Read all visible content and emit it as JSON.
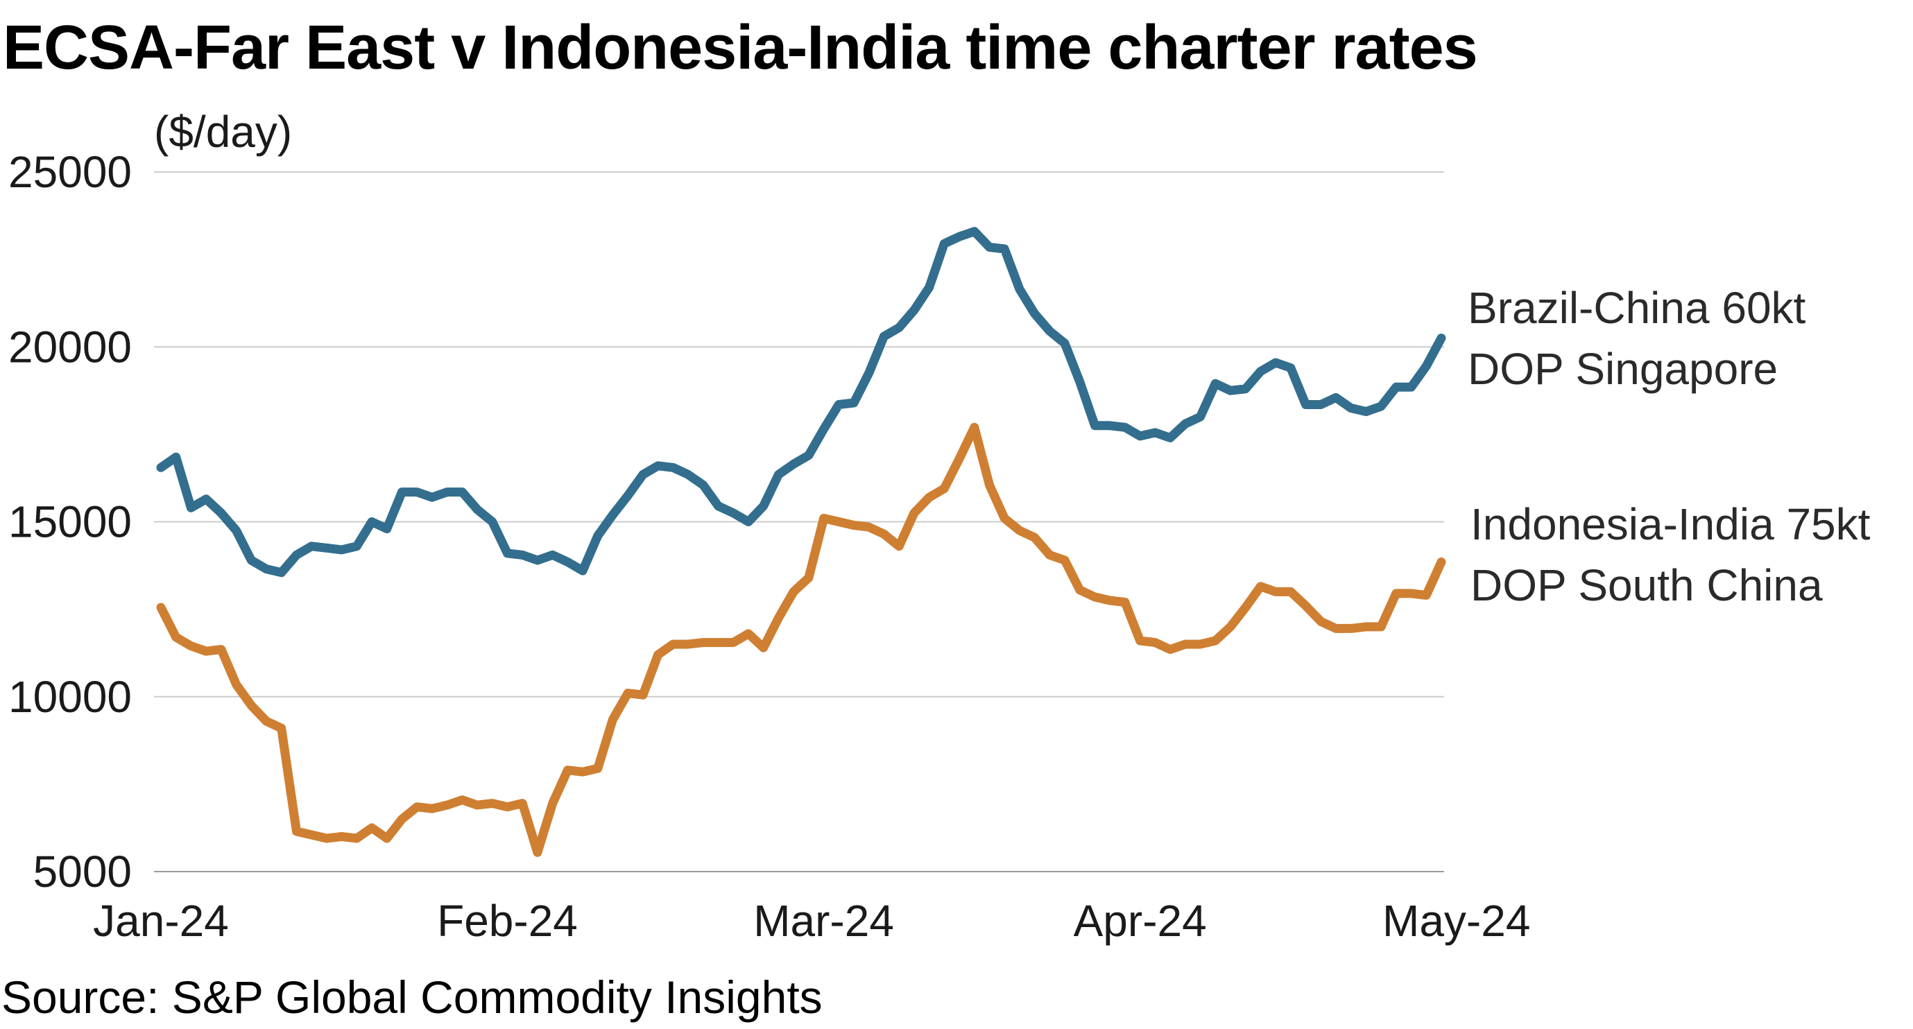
{
  "title": "ECSA-Far East v Indonesia-India time charter rates",
  "source": "Source: S&P Global Commodity Insights",
  "chart_data": {
    "type": "line",
    "title": "ECSA-Far East v Indonesia-India time charter rates",
    "ylabel": "($/day)",
    "xlabel": "",
    "ylim": [
      5000,
      25000
    ],
    "yticks": [
      5000,
      10000,
      15000,
      20000,
      25000
    ],
    "ytick_labels": [
      "5000",
      "10000",
      "15000",
      "20000",
      "25000"
    ],
    "xticks": [
      {
        "label": "Jan-24",
        "index": 0
      },
      {
        "label": "Feb-24",
        "index": 23
      },
      {
        "label": "Mar-24",
        "index": 44
      },
      {
        "label": "Apr-24",
        "index": 65
      },
      {
        "label": "May-24",
        "index": 86
      }
    ],
    "grid": true,
    "series": [
      {
        "name": "Brazil-China 60kt DOP Singapore",
        "label_lines": [
          "Brazil-China 60kt",
          "DOP Singapore"
        ],
        "color": "#336e8e",
        "values": [
          16550,
          16850,
          15400,
          15650,
          15250,
          14750,
          13900,
          13650,
          13550,
          14050,
          14300,
          14250,
          14200,
          14300,
          15000,
          14800,
          15850,
          15850,
          15700,
          15850,
          15850,
          15350,
          15000,
          14100,
          14050,
          13900,
          14050,
          13850,
          13600,
          14600,
          15200,
          15750,
          16350,
          16600,
          16550,
          16350,
          16050,
          15450,
          15250,
          15000,
          15450,
          16350,
          16650,
          16900,
          17650,
          18350,
          18400,
          19250,
          20300,
          20550,
          21050,
          21700,
          22950,
          23150,
          23300,
          22850,
          22800,
          21650,
          20950,
          20450,
          20100,
          19000,
          17750,
          17750,
          17700,
          17450,
          17550,
          17400,
          17800,
          18000,
          18950,
          18750,
          18800,
          19300,
          19550,
          19400,
          18350,
          18350,
          18550,
          18250,
          18150,
          18300,
          18850,
          18850,
          19450,
          20250
        ]
      },
      {
        "name": "Indonesia-India 75kt DOP South China",
        "label_lines": [
          "Indonesia-India 75kt",
          "DOP South China"
        ],
        "color": "#cf7f32",
        "values": [
          12550,
          11700,
          11450,
          11300,
          11350,
          10350,
          9750,
          9300,
          9100,
          6150,
          6050,
          5950,
          6000,
          5950,
          6250,
          5950,
          6500,
          6850,
          6800,
          6900,
          7050,
          6900,
          6950,
          6850,
          6950,
          5550,
          6950,
          7900,
          7850,
          7950,
          9350,
          10100,
          10050,
          11200,
          11500,
          11500,
          11550,
          11550,
          11550,
          11800,
          11400,
          12250,
          13000,
          13400,
          15100,
          15000,
          14900,
          14850,
          14650,
          14300,
          15250,
          15700,
          15950,
          16800,
          17700,
          16050,
          15100,
          14750,
          14550,
          14050,
          13900,
          13050,
          12850,
          12750,
          12700,
          11600,
          11550,
          11350,
          11500,
          11500,
          11600,
          12000,
          12550,
          13150,
          13000,
          13000,
          12600,
          12150,
          11950,
          11950,
          12000,
          12000,
          12950,
          12950,
          12900,
          13850
        ]
      }
    ]
  }
}
